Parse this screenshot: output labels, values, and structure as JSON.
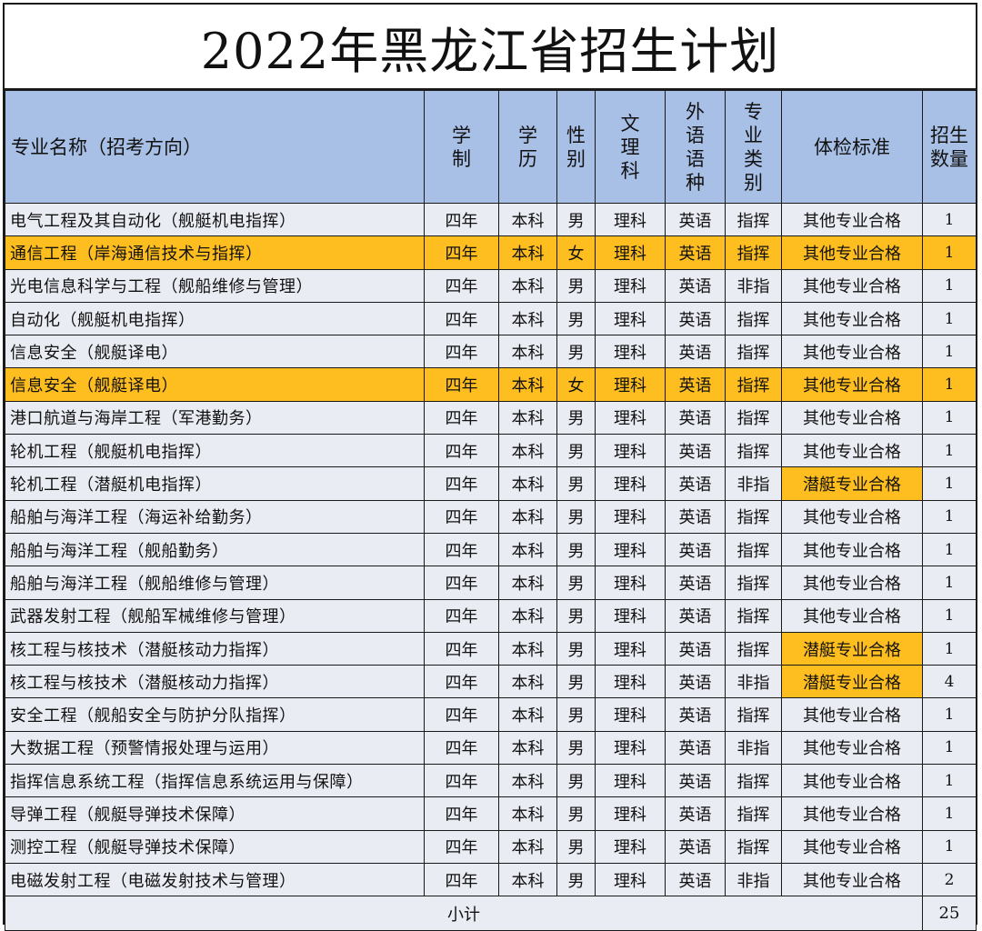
{
  "title": "2022年黑龙江省招生计划",
  "headers": {
    "major": "专业名称（招考方向）",
    "duration": "学制",
    "degree": "学历",
    "gender": "性别",
    "stream": "文理科",
    "language": "外语语种",
    "category": "专业类别",
    "physical": "体检标准",
    "count": "招生数量"
  },
  "colors": {
    "header_bg": "#a9c0e6",
    "row_bg": "#e9ecf3",
    "highlight": "#ffbe1f"
  },
  "rows": [
    {
      "major": "电气工程及其自动化（舰艇机电指挥）",
      "duration": "四年",
      "degree": "本科",
      "gender": "男",
      "stream": "理科",
      "language": "英语",
      "category": "指挥",
      "physical": "其他专业合格",
      "count": "1",
      "row_highlight": false,
      "physical_highlight": false
    },
    {
      "major": "通信工程（岸海通信技术与指挥）",
      "duration": "四年",
      "degree": "本科",
      "gender": "女",
      "stream": "理科",
      "language": "英语",
      "category": "指挥",
      "physical": "其他专业合格",
      "count": "1",
      "row_highlight": true,
      "physical_highlight": false
    },
    {
      "major": "光电信息科学与工程（舰船维修与管理）",
      "duration": "四年",
      "degree": "本科",
      "gender": "男",
      "stream": "理科",
      "language": "英语",
      "category": "非指",
      "physical": "其他专业合格",
      "count": "1",
      "row_highlight": false,
      "physical_highlight": false
    },
    {
      "major": "自动化（舰艇机电指挥）",
      "duration": "四年",
      "degree": "本科",
      "gender": "男",
      "stream": "理科",
      "language": "英语",
      "category": "指挥",
      "physical": "其他专业合格",
      "count": "1",
      "row_highlight": false,
      "physical_highlight": false
    },
    {
      "major": "信息安全（舰艇译电）",
      "duration": "四年",
      "degree": "本科",
      "gender": "男",
      "stream": "理科",
      "language": "英语",
      "category": "指挥",
      "physical": "其他专业合格",
      "count": "1",
      "row_highlight": false,
      "physical_highlight": false
    },
    {
      "major": "信息安全（舰艇译电）",
      "duration": "四年",
      "degree": "本科",
      "gender": "女",
      "stream": "理科",
      "language": "英语",
      "category": "指挥",
      "physical": "其他专业合格",
      "count": "1",
      "row_highlight": true,
      "physical_highlight": false
    },
    {
      "major": "港口航道与海岸工程（军港勤务）",
      "duration": "四年",
      "degree": "本科",
      "gender": "男",
      "stream": "理科",
      "language": "英语",
      "category": "指挥",
      "physical": "其他专业合格",
      "count": "1",
      "row_highlight": false,
      "physical_highlight": false
    },
    {
      "major": "轮机工程（舰艇机电指挥）",
      "duration": "四年",
      "degree": "本科",
      "gender": "男",
      "stream": "理科",
      "language": "英语",
      "category": "指挥",
      "physical": "其他专业合格",
      "count": "1",
      "row_highlight": false,
      "physical_highlight": false
    },
    {
      "major": "轮机工程（潜艇机电指挥）",
      "duration": "四年",
      "degree": "本科",
      "gender": "男",
      "stream": "理科",
      "language": "英语",
      "category": "非指",
      "physical": "潜艇专业合格",
      "count": "1",
      "row_highlight": false,
      "physical_highlight": true
    },
    {
      "major": "船舶与海洋工程（海运补给勤务）",
      "duration": "四年",
      "degree": "本科",
      "gender": "男",
      "stream": "理科",
      "language": "英语",
      "category": "指挥",
      "physical": "其他专业合格",
      "count": "1",
      "row_highlight": false,
      "physical_highlight": false
    },
    {
      "major": "船舶与海洋工程（舰船勤务）",
      "duration": "四年",
      "degree": "本科",
      "gender": "男",
      "stream": "理科",
      "language": "英语",
      "category": "指挥",
      "physical": "其他专业合格",
      "count": "1",
      "row_highlight": false,
      "physical_highlight": false
    },
    {
      "major": "船舶与海洋工程（舰船维修与管理）",
      "duration": "四年",
      "degree": "本科",
      "gender": "男",
      "stream": "理科",
      "language": "英语",
      "category": "指挥",
      "physical": "其他专业合格",
      "count": "1",
      "row_highlight": false,
      "physical_highlight": false
    },
    {
      "major": "武器发射工程（舰船军械维修与管理）",
      "duration": "四年",
      "degree": "本科",
      "gender": "男",
      "stream": "理科",
      "language": "英语",
      "category": "指挥",
      "physical": "其他专业合格",
      "count": "1",
      "row_highlight": false,
      "physical_highlight": false
    },
    {
      "major": "核工程与核技术（潜艇核动力指挥）",
      "duration": "四年",
      "degree": "本科",
      "gender": "男",
      "stream": "理科",
      "language": "英语",
      "category": "指挥",
      "physical": "潜艇专业合格",
      "count": "1",
      "row_highlight": false,
      "physical_highlight": true
    },
    {
      "major": "核工程与核技术（潜艇核动力指挥）",
      "duration": "四年",
      "degree": "本科",
      "gender": "男",
      "stream": "理科",
      "language": "英语",
      "category": "非指",
      "physical": "潜艇专业合格",
      "count": "4",
      "row_highlight": false,
      "physical_highlight": true
    },
    {
      "major": "安全工程（舰船安全与防护分队指挥）",
      "duration": "四年",
      "degree": "本科",
      "gender": "男",
      "stream": "理科",
      "language": "英语",
      "category": "指挥",
      "physical": "其他专业合格",
      "count": "1",
      "row_highlight": false,
      "physical_highlight": false
    },
    {
      "major": "大数据工程（预警情报处理与运用）",
      "duration": "四年",
      "degree": "本科",
      "gender": "男",
      "stream": "理科",
      "language": "英语",
      "category": "非指",
      "physical": "其他专业合格",
      "count": "1",
      "row_highlight": false,
      "physical_highlight": false
    },
    {
      "major": "指挥信息系统工程（指挥信息系统运用与保障）",
      "duration": "四年",
      "degree": "本科",
      "gender": "男",
      "stream": "理科",
      "language": "英语",
      "category": "指挥",
      "physical": "其他专业合格",
      "count": "1",
      "row_highlight": false,
      "physical_highlight": false
    },
    {
      "major": "导弹工程（舰艇导弹技术保障）",
      "duration": "四年",
      "degree": "本科",
      "gender": "男",
      "stream": "理科",
      "language": "英语",
      "category": "指挥",
      "physical": "其他专业合格",
      "count": "1",
      "row_highlight": false,
      "physical_highlight": false
    },
    {
      "major": "测控工程（舰艇导弹技术保障）",
      "duration": "四年",
      "degree": "本科",
      "gender": "男",
      "stream": "理科",
      "language": "英语",
      "category": "指挥",
      "physical": "其他专业合格",
      "count": "1",
      "row_highlight": false,
      "physical_highlight": false
    },
    {
      "major": "电磁发射工程（电磁发射技术与管理）",
      "duration": "四年",
      "degree": "本科",
      "gender": "男",
      "stream": "理科",
      "language": "英语",
      "category": "非指",
      "physical": "其他专业合格",
      "count": "2",
      "row_highlight": false,
      "physical_highlight": false
    }
  ],
  "footer": {
    "label": "小计",
    "total": "25"
  }
}
